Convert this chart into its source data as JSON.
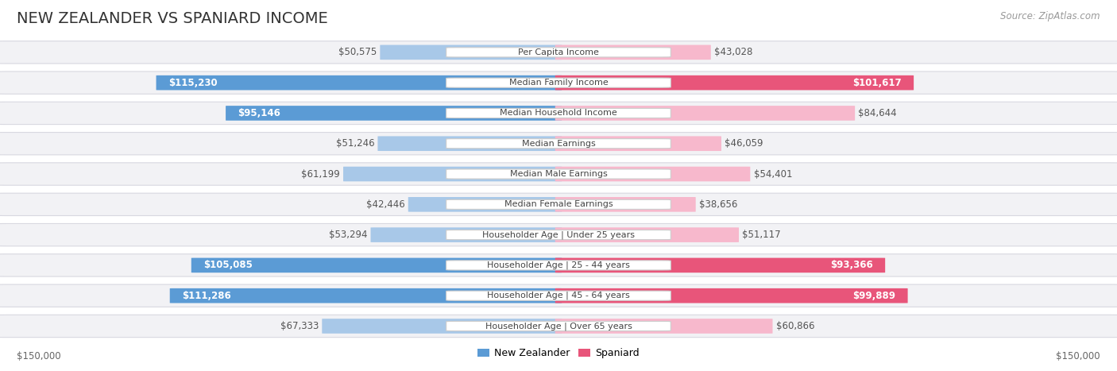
{
  "title": "NEW ZEALANDER VS SPANIARD INCOME",
  "source": "Source: ZipAtlas.com",
  "categories": [
    "Per Capita Income",
    "Median Family Income",
    "Median Household Income",
    "Median Earnings",
    "Median Male Earnings",
    "Median Female Earnings",
    "Householder Age | Under 25 years",
    "Householder Age | 25 - 44 years",
    "Householder Age | 45 - 64 years",
    "Householder Age | Over 65 years"
  ],
  "nz_values": [
    50575,
    115230,
    95146,
    51246,
    61199,
    42446,
    53294,
    105085,
    111286,
    67333
  ],
  "sp_values": [
    43028,
    101617,
    84644,
    46059,
    54401,
    38656,
    51117,
    93366,
    99889,
    60866
  ],
  "nz_labels": [
    "$50,575",
    "$115,230",
    "$95,146",
    "$51,246",
    "$61,199",
    "$42,446",
    "$53,294",
    "$105,085",
    "$111,286",
    "$67,333"
  ],
  "sp_labels": [
    "$43,028",
    "$101,617",
    "$84,644",
    "$46,059",
    "$54,401",
    "$38,656",
    "$51,117",
    "$93,366",
    "$99,889",
    "$60,866"
  ],
  "max_value": 150000,
  "nz_color_light": "#a8c8e8",
  "nz_color_dark": "#5b9bd5",
  "sp_color_light": "#f7b8cc",
  "sp_color_dark": "#e8557a",
  "nz_threshold": 90000,
  "sp_threshold": 90000,
  "bg_color": "#ffffff",
  "row_bg_color": "#f2f2f5",
  "row_border_color": "#d8d8e0",
  "title_fontsize": 14,
  "label_fontsize": 8.5,
  "cat_fontsize": 8.0,
  "source_fontsize": 8.5,
  "legend_fontsize": 9.0
}
